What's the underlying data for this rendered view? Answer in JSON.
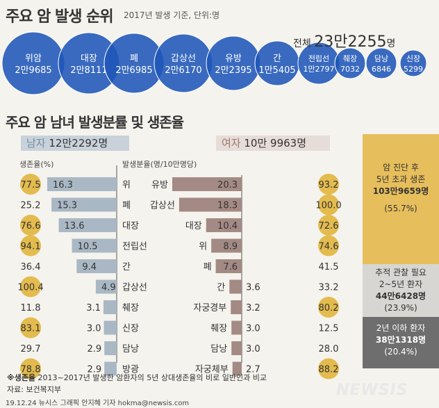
{
  "header": {
    "title": "주요 암 발생 순위",
    "subtitle": "2017년 발생 기준, 단위:명",
    "total_label": "전체",
    "total_value": "23만2255",
    "total_unit": "명"
  },
  "bubbles": [
    {
      "name": "위암",
      "value": "2만9685",
      "count": 29685
    },
    {
      "name": "대장",
      "value": "2만8111",
      "count": 28111
    },
    {
      "name": "폐",
      "value": "2만6985",
      "count": 26985
    },
    {
      "name": "갑상선",
      "value": "2만6170",
      "count": 26170
    },
    {
      "name": "유방",
      "value": "2만2395",
      "count": 22395
    },
    {
      "name": "간",
      "value": "1만5405",
      "count": 15405
    },
    {
      "name": "전립선",
      "value": "1만2797",
      "count": 12797
    },
    {
      "name": "췌장",
      "value": "7032",
      "count": 7032
    },
    {
      "name": "담낭",
      "value": "6846",
      "count": 6846
    },
    {
      "name": "신장",
      "value": "5299",
      "count": 5299
    }
  ],
  "section": {
    "title_plain": "주요 암 남녀 발생분률 및 ",
    "title_bold": "생존율",
    "male_key": "남자",
    "male_total": "12만2292명",
    "female_key": "여자",
    "female_total": "10만 9963명",
    "survival_head": "생존율(%)",
    "rate_head": "발생분율(명/10만명당)"
  },
  "chart_data": {
    "type": "bar",
    "colors": {
      "male_bar": "#a9b8c4",
      "female_bar": "#a48a84",
      "circle": "#e3bb4e"
    },
    "male": [
      {
        "cancer": "위",
        "rate": 16.3,
        "survival": "77.5"
      },
      {
        "cancer": "폐",
        "rate": 15.3,
        "survival": "25.2"
      },
      {
        "cancer": "대장",
        "rate": 13.6,
        "survival": "76.6"
      },
      {
        "cancer": "전립선",
        "rate": 10.5,
        "survival": "94.1"
      },
      {
        "cancer": "간",
        "rate": 9.4,
        "survival": "36.4"
      },
      {
        "cancer": "갑상선",
        "rate": 4.9,
        "survival": "100.4"
      },
      {
        "cancer": "췌장",
        "rate": 3.1,
        "survival": "11.8"
      },
      {
        "cancer": "신장",
        "rate": 3.0,
        "survival": "83.1"
      },
      {
        "cancer": "담낭",
        "rate": 2.9,
        "survival": "29.7"
      },
      {
        "cancer": "방광",
        "rate": 2.9,
        "survival": "78.8"
      }
    ],
    "female": [
      {
        "cancer": "유방",
        "rate": 20.3,
        "survival": "93.2"
      },
      {
        "cancer": "갑상선",
        "rate": 18.3,
        "survival": "100.0"
      },
      {
        "cancer": "대장",
        "rate": 10.4,
        "survival": "72.6"
      },
      {
        "cancer": "위",
        "rate": 8.9,
        "survival": "74.6"
      },
      {
        "cancer": "폐",
        "rate": 7.6,
        "survival": "41.5"
      },
      {
        "cancer": "간",
        "rate": 3.6,
        "survival": "33.2"
      },
      {
        "cancer": "자궁경부",
        "rate": 3.2,
        "survival": "80.2"
      },
      {
        "cancer": "췌장",
        "rate": 3.0,
        "survival": "12.5"
      },
      {
        "cancer": "담낭",
        "rate": 3.0,
        "survival": "28.0"
      },
      {
        "cancer": "자궁체부",
        "rate": 2.7,
        "survival": "88.2"
      }
    ]
  },
  "panels": {
    "p1_line1": "암 진단 후",
    "p1_line2": "5년 초과 생존",
    "p1_value": "103만9659명",
    "p1_pct": "(55.7%)",
    "p2_line1": "추적 관찰 필요",
    "p2_line2": "2~5년 환자",
    "p2_value": "44만6428명",
    "p2_pct": "(23.9%)",
    "p3_line1": "2년 이하 환자",
    "p3_value": "38만1318명",
    "p3_pct": "(20.4%)"
  },
  "footer": {
    "note_bold": "※생존율",
    "note_text": " 2013~2017년 발생한 암환자의 5년 상대생존율의 비로 일반인과 비교",
    "source": "자료: 보건복지부",
    "credit": "19.12.24 뉴시스 그래픽 안지혜 기자 hokma@newsis.com",
    "logo": "NEWSIS"
  }
}
